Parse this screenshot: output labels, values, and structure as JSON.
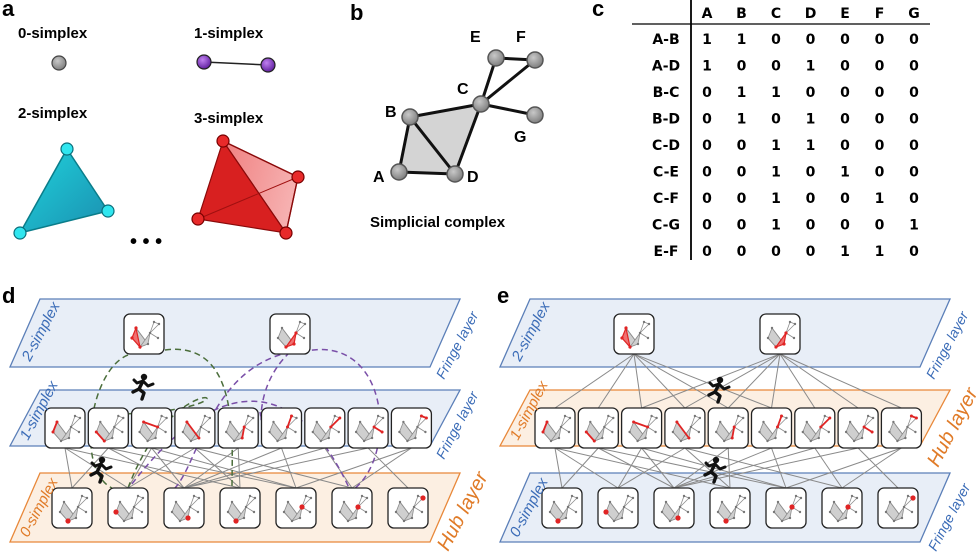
{
  "panels": {
    "a": {
      "label": "a",
      "simplices": [
        "0-simplex",
        "1-simplex",
        "2-simplex",
        "3-simplex"
      ],
      "ellipsis": "• • •",
      "colors": {
        "zero": "#8c8c8c",
        "one": "#8a2be2",
        "two": "#27c9d6",
        "three": "#e02424"
      }
    },
    "b": {
      "label": "b",
      "nodes": [
        "A",
        "B",
        "C",
        "D",
        "E",
        "F",
        "G"
      ],
      "caption": "Simplicial complex"
    },
    "c": {
      "label": "c",
      "columns": [
        "A",
        "B",
        "C",
        "D",
        "E",
        "F",
        "G"
      ],
      "rows": [
        {
          "edge": "A-B",
          "values": [
            1,
            1,
            0,
            0,
            0,
            0,
            0
          ]
        },
        {
          "edge": "A-D",
          "values": [
            1,
            0,
            0,
            1,
            0,
            0,
            0
          ]
        },
        {
          "edge": "B-C",
          "values": [
            0,
            1,
            1,
            0,
            0,
            0,
            0
          ]
        },
        {
          "edge": "B-D",
          "values": [
            0,
            1,
            0,
            1,
            0,
            0,
            0
          ]
        },
        {
          "edge": "C-D",
          "values": [
            0,
            0,
            1,
            1,
            0,
            0,
            0
          ]
        },
        {
          "edge": "C-E",
          "values": [
            0,
            0,
            1,
            0,
            1,
            0,
            0
          ]
        },
        {
          "edge": "C-F",
          "values": [
            0,
            0,
            1,
            0,
            0,
            1,
            0
          ]
        },
        {
          "edge": "C-G",
          "values": [
            0,
            0,
            1,
            0,
            0,
            0,
            1
          ]
        },
        {
          "edge": "E-F",
          "values": [
            0,
            0,
            0,
            0,
            1,
            1,
            0
          ]
        }
      ]
    },
    "d": {
      "label": "d",
      "layers": [
        {
          "name": "2-simplex",
          "tag": "Fringe layer",
          "kind": "fringe"
        },
        {
          "name": "1-simplex",
          "tag": "Fringe layer",
          "kind": "fringe"
        },
        {
          "name": "0-simplex",
          "tag": "Hub layer",
          "kind": "hub"
        }
      ]
    },
    "e": {
      "label": "e",
      "layers": [
        {
          "name": "2-simplex",
          "tag": "Fringe layer",
          "kind": "fringe"
        },
        {
          "name": "1-simplex",
          "tag": "Hub layer",
          "kind": "hub"
        },
        {
          "name": "0-simplex",
          "tag": "Fringe layer",
          "kind": "fringe"
        }
      ]
    }
  },
  "colors": {
    "fringe_stroke": "#5b7fb8",
    "fringe_fill": "#e8eef7",
    "hub_stroke": "#e8883a",
    "hub_fill": "#fcefe2",
    "fringe_text": "#3b6cb7",
    "hub_text": "#e07b28",
    "walk_green": "#4b6e3b",
    "walk_purple": "#7a4fa8",
    "highlight": "#e02424"
  }
}
